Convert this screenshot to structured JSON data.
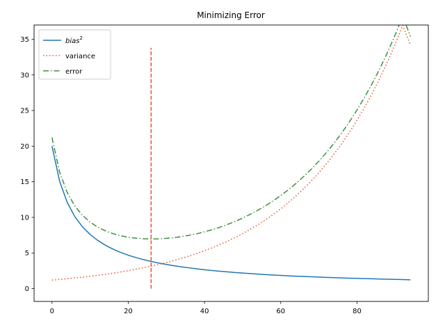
{
  "chart_data": {
    "type": "line",
    "title": "Minimizing Error",
    "xlabel": "",
    "ylabel": "",
    "xlim": [
      -4.7,
      98.7
    ],
    "ylim": [
      -1.8,
      37.0
    ],
    "xticks": [
      0,
      20,
      40,
      60,
      80
    ],
    "yticks": [
      0,
      5,
      10,
      15,
      20,
      25,
      30,
      35
    ],
    "grid": false,
    "legend_position": "top-left",
    "x": [
      0,
      2,
      4,
      6,
      8,
      10,
      12,
      14,
      16,
      18,
      20,
      22,
      24,
      26,
      28,
      30,
      32,
      34,
      36,
      38,
      40,
      42,
      44,
      46,
      48,
      50,
      52,
      54,
      56,
      58,
      60,
      62,
      64,
      66,
      68,
      70,
      72,
      74,
      76,
      78,
      80,
      82,
      84,
      86,
      88,
      90,
      92,
      94
    ],
    "series": [
      {
        "name": "bias",
        "name_superscript": "2",
        "color": "#1f77b4",
        "style": "solid",
        "values": [
          20.0,
          15.07,
          12.09,
          10.09,
          8.67,
          7.6,
          6.76,
          6.09,
          5.54,
          5.08,
          4.69,
          4.36,
          4.07,
          3.81,
          3.59,
          3.39,
          3.21,
          3.05,
          2.91,
          2.77,
          2.65,
          2.54,
          2.44,
          2.35,
          2.26,
          2.18,
          2.11,
          2.04,
          1.97,
          1.91,
          1.86,
          1.8,
          1.75,
          1.71,
          1.66,
          1.62,
          1.58,
          1.54,
          1.5,
          1.47,
          1.44,
          1.41,
          1.38,
          1.35,
          1.32,
          1.29,
          1.27,
          1.24
        ]
      },
      {
        "name": "variance",
        "color": "#e8522c",
        "style": "dotted",
        "values": [
          1.2,
          1.29,
          1.39,
          1.5,
          1.61,
          1.74,
          1.87,
          2.02,
          2.17,
          2.34,
          2.52,
          2.72,
          2.93,
          3.15,
          3.4,
          3.66,
          3.94,
          4.25,
          4.58,
          4.93,
          5.32,
          5.73,
          6.17,
          6.65,
          7.16,
          7.72,
          8.32,
          8.96,
          9.65,
          10.4,
          11.21,
          12.07,
          13.01,
          14.02,
          15.1,
          16.27,
          17.53,
          18.89,
          20.35,
          21.93,
          23.63,
          25.46,
          27.43,
          29.55,
          31.84,
          34.31,
          36.97,
          34.2
        ]
      },
      {
        "name": "error",
        "color": "#3f8f3f",
        "style": "dashdot",
        "values": [
          21.2,
          16.36,
          13.48,
          11.59,
          10.28,
          9.34,
          8.63,
          8.11,
          7.71,
          7.42,
          7.21,
          7.08,
          7.0,
          6.96,
          6.99,
          7.05,
          7.15,
          7.3,
          7.49,
          7.7,
          7.97,
          8.27,
          8.61,
          9.0,
          9.42,
          9.9,
          10.43,
          11.0,
          11.62,
          12.31,
          13.07,
          13.87,
          14.76,
          15.73,
          16.76,
          17.89,
          19.11,
          20.43,
          21.85,
          23.4,
          25.07,
          26.87,
          28.81,
          30.9,
          33.16,
          35.6,
          38.24,
          35.4
        ]
      }
    ],
    "vline": {
      "x": 26,
      "y_from": 0,
      "y_to": 33.8,
      "color": "#e8522c",
      "style": "dashed"
    }
  }
}
